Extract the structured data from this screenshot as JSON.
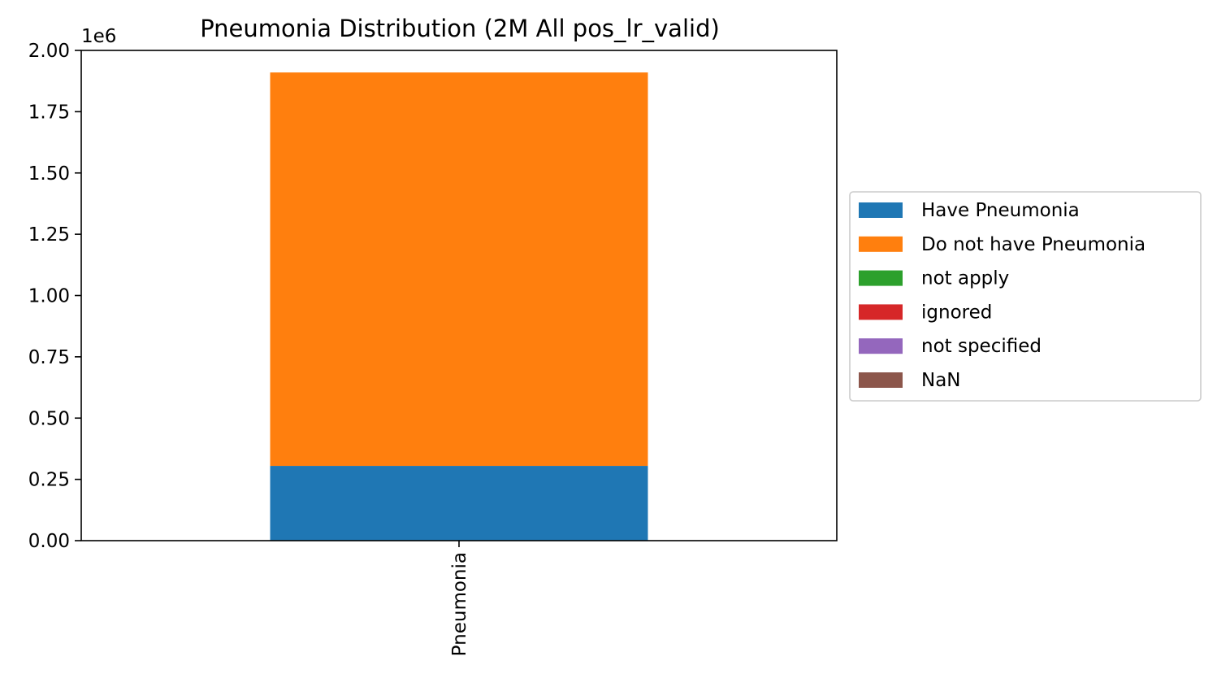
{
  "chart_data": {
    "type": "bar",
    "stacked": true,
    "title": "Pneumonia Distribution (2M All pos_lr_valid)",
    "xlabel": "",
    "ylabel": "",
    "categories": [
      "Pneumonia"
    ],
    "y_scale_label": "1e6",
    "ylim": [
      0,
      2000000
    ],
    "yticks": [
      0,
      250000,
      500000,
      750000,
      1000000,
      1250000,
      1500000,
      1750000,
      2000000
    ],
    "ytick_labels": [
      "0.00",
      "0.25",
      "0.50",
      "0.75",
      "1.00",
      "1.25",
      "1.50",
      "1.75",
      "2.00"
    ],
    "grid": false,
    "legend_position": "center-right-outside",
    "series": [
      {
        "name": "Have Pneumonia",
        "values": [
          305000
        ],
        "color": "#1f77b4"
      },
      {
        "name": "Do not have Pneumonia",
        "values": [
          1605000
        ],
        "color": "#ff7f0e"
      },
      {
        "name": "not apply",
        "values": [
          0
        ],
        "color": "#2ca02c"
      },
      {
        "name": "ignored",
        "values": [
          0
        ],
        "color": "#d62728"
      },
      {
        "name": "not specified",
        "values": [
          0
        ],
        "color": "#9467bd"
      },
      {
        "name": "NaN",
        "values": [
          0
        ],
        "color": "#8c564b"
      }
    ]
  }
}
